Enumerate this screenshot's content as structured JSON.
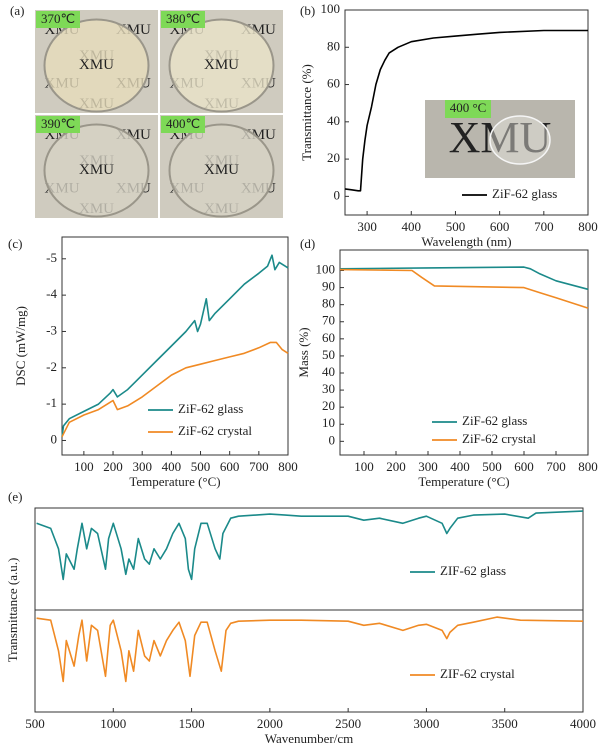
{
  "panel_a": {
    "label": "(a)",
    "watermark": "XMU",
    "photos": [
      {
        "label": "370℃"
      },
      {
        "label": "380℃"
      },
      {
        "label": "390℃"
      },
      {
        "label": "400℃"
      }
    ]
  },
  "chart_data": [
    {
      "type": "line",
      "label": "(b)",
      "xlabel": "Wavelength (nm)",
      "ylabel": "Transmittance (%)",
      "xlim": [
        250,
        800
      ],
      "xticks": [
        300,
        400,
        500,
        600,
        700,
        800
      ],
      "ylim": [
        -10,
        100
      ],
      "yticks": [
        0,
        20,
        40,
        60,
        80,
        100
      ],
      "inset_label": "400 °C",
      "inset_watermark": "XMU",
      "series": [
        {
          "name": "ZiF-62 glass",
          "color": "#000000",
          "x": [
            250,
            265,
            280,
            285,
            290,
            295,
            300,
            310,
            320,
            330,
            340,
            350,
            370,
            400,
            450,
            500,
            550,
            600,
            700,
            800
          ],
          "values": [
            4,
            3.5,
            3,
            3,
            20,
            30,
            38,
            48,
            60,
            68,
            73,
            77,
            80,
            83,
            85,
            86,
            87,
            88,
            89,
            89
          ]
        }
      ]
    },
    {
      "type": "line",
      "label": "(c)",
      "xlabel": "Temperature (°C)",
      "ylabel": "DSC (mW/mg)",
      "xlim": [
        25,
        800
      ],
      "xticks": [
        100,
        200,
        300,
        400,
        500,
        600,
        700,
        800
      ],
      "ylim": [
        0.4,
        -5.6
      ],
      "yticks": [
        0,
        -1,
        -2,
        -3,
        -4,
        -5
      ],
      "series": [
        {
          "name": "ZiF-62 glass",
          "color": "#1b8a8a",
          "x": [
            25,
            30,
            50,
            100,
            150,
            190,
            200,
            215,
            250,
            300,
            350,
            400,
            450,
            480,
            490,
            500,
            520,
            530,
            550,
            600,
            650,
            700,
            730,
            745,
            755,
            770,
            790,
            800
          ],
          "values": [
            -0.1,
            -0.4,
            -0.6,
            -0.8,
            -1.0,
            -1.3,
            -1.4,
            -1.2,
            -1.4,
            -1.8,
            -2.2,
            -2.6,
            -3.0,
            -3.3,
            -3.0,
            -3.2,
            -3.9,
            -3.3,
            -3.5,
            -3.9,
            -4.3,
            -4.6,
            -4.8,
            -5.1,
            -4.7,
            -4.9,
            -4.8,
            -4.75
          ]
        },
        {
          "name": "ZiF-62 crystal",
          "color": "#f08a24",
          "x": [
            25,
            50,
            100,
            150,
            190,
            200,
            215,
            250,
            300,
            350,
            400,
            450,
            500,
            550,
            600,
            650,
            700,
            740,
            760,
            780,
            800
          ],
          "values": [
            -0.1,
            -0.5,
            -0.7,
            -0.85,
            -1.05,
            -1.1,
            -0.85,
            -0.95,
            -1.2,
            -1.5,
            -1.8,
            -2.0,
            -2.1,
            -2.2,
            -2.3,
            -2.4,
            -2.55,
            -2.7,
            -2.7,
            -2.5,
            -2.4
          ]
        }
      ]
    },
    {
      "type": "line",
      "label": "(d)",
      "xlabel": "Temperature (°C)",
      "ylabel": "Mass (%)",
      "xlim": [
        25,
        800
      ],
      "xticks": [
        100,
        200,
        300,
        400,
        500,
        600,
        700,
        800
      ],
      "ylim": [
        -8,
        112
      ],
      "yticks": [
        0,
        10,
        20,
        30,
        40,
        50,
        60,
        70,
        80,
        90,
        100
      ],
      "series": [
        {
          "name": "ZiF-62 glass",
          "color": "#1b8a8a",
          "x": [
            25,
            300,
            600,
            620,
            650,
            700,
            800
          ],
          "values": [
            101,
            101.5,
            102,
            101,
            98,
            94,
            89
          ]
        },
        {
          "name": "ZiF-62 crystal",
          "color": "#f08a24",
          "x": [
            25,
            250,
            280,
            320,
            600,
            650,
            700,
            800
          ],
          "values": [
            100.5,
            100,
            96,
            91,
            90,
            87,
            84,
            78
          ]
        }
      ]
    },
    {
      "type": "line",
      "label": "(e)",
      "xlabel": "Wavenumber/cm",
      "ylabel": "Transmittance (a.u.)",
      "xlim": [
        500,
        4000
      ],
      "xticks": [
        500,
        1000,
        1500,
        2000,
        2500,
        3000,
        3500,
        4000
      ],
      "ylim": [
        0,
        2
      ],
      "series": [
        {
          "name": "ZIF-62 glass",
          "color": "#1b8a8a",
          "x": [
            510,
            600,
            650,
            680,
            700,
            750,
            770,
            800,
            830,
            860,
            900,
            950,
            970,
            1000,
            1050,
            1080,
            1100,
            1130,
            1160,
            1200,
            1230,
            1260,
            1300,
            1340,
            1380,
            1420,
            1460,
            1480,
            1500,
            1520,
            1560,
            1600,
            1650,
            1680,
            1700,
            1750,
            1800,
            2000,
            2100,
            2200,
            2500,
            2600,
            2700,
            2850,
            2950,
            3000,
            3100,
            3130,
            3150,
            3200,
            3300,
            3500,
            3650,
            3700,
            4000
          ],
          "values": [
            1.85,
            1.8,
            1.6,
            1.3,
            1.55,
            1.4,
            1.6,
            1.85,
            1.6,
            1.8,
            1.75,
            1.4,
            1.7,
            1.85,
            1.6,
            1.35,
            1.5,
            1.4,
            1.7,
            1.5,
            1.45,
            1.6,
            1.5,
            1.6,
            1.75,
            1.85,
            1.7,
            1.4,
            1.3,
            1.6,
            1.85,
            1.85,
            1.6,
            1.5,
            1.75,
            1.9,
            1.92,
            1.94,
            1.93,
            1.92,
            1.92,
            1.88,
            1.9,
            1.85,
            1.9,
            1.92,
            1.85,
            1.75,
            1.8,
            1.9,
            1.93,
            1.94,
            1.9,
            1.95,
            1.97
          ]
        },
        {
          "name": "ZIF-62 crystal",
          "color": "#f08a24",
          "x": [
            510,
            600,
            650,
            680,
            700,
            750,
            780,
            800,
            830,
            860,
            900,
            950,
            980,
            1000,
            1050,
            1080,
            1100,
            1130,
            1160,
            1200,
            1230,
            1260,
            1300,
            1340,
            1380,
            1420,
            1460,
            1490,
            1520,
            1560,
            1600,
            1650,
            1690,
            1720,
            1750,
            1800,
            2000,
            2200,
            2500,
            2600,
            2700,
            2850,
            2950,
            3000,
            3100,
            3130,
            3150,
            3200,
            3300,
            3450,
            3600,
            4000
          ],
          "values": [
            0.92,
            0.9,
            0.6,
            0.3,
            0.7,
            0.45,
            0.75,
            0.9,
            0.5,
            0.85,
            0.8,
            0.35,
            0.85,
            0.9,
            0.6,
            0.3,
            0.6,
            0.4,
            0.8,
            0.55,
            0.5,
            0.7,
            0.55,
            0.7,
            0.8,
            0.88,
            0.7,
            0.35,
            0.75,
            0.88,
            0.88,
            0.6,
            0.4,
            0.8,
            0.87,
            0.89,
            0.9,
            0.9,
            0.89,
            0.85,
            0.87,
            0.8,
            0.85,
            0.86,
            0.8,
            0.72,
            0.78,
            0.85,
            0.88,
            0.93,
            0.9,
            0.89
          ]
        }
      ]
    }
  ]
}
